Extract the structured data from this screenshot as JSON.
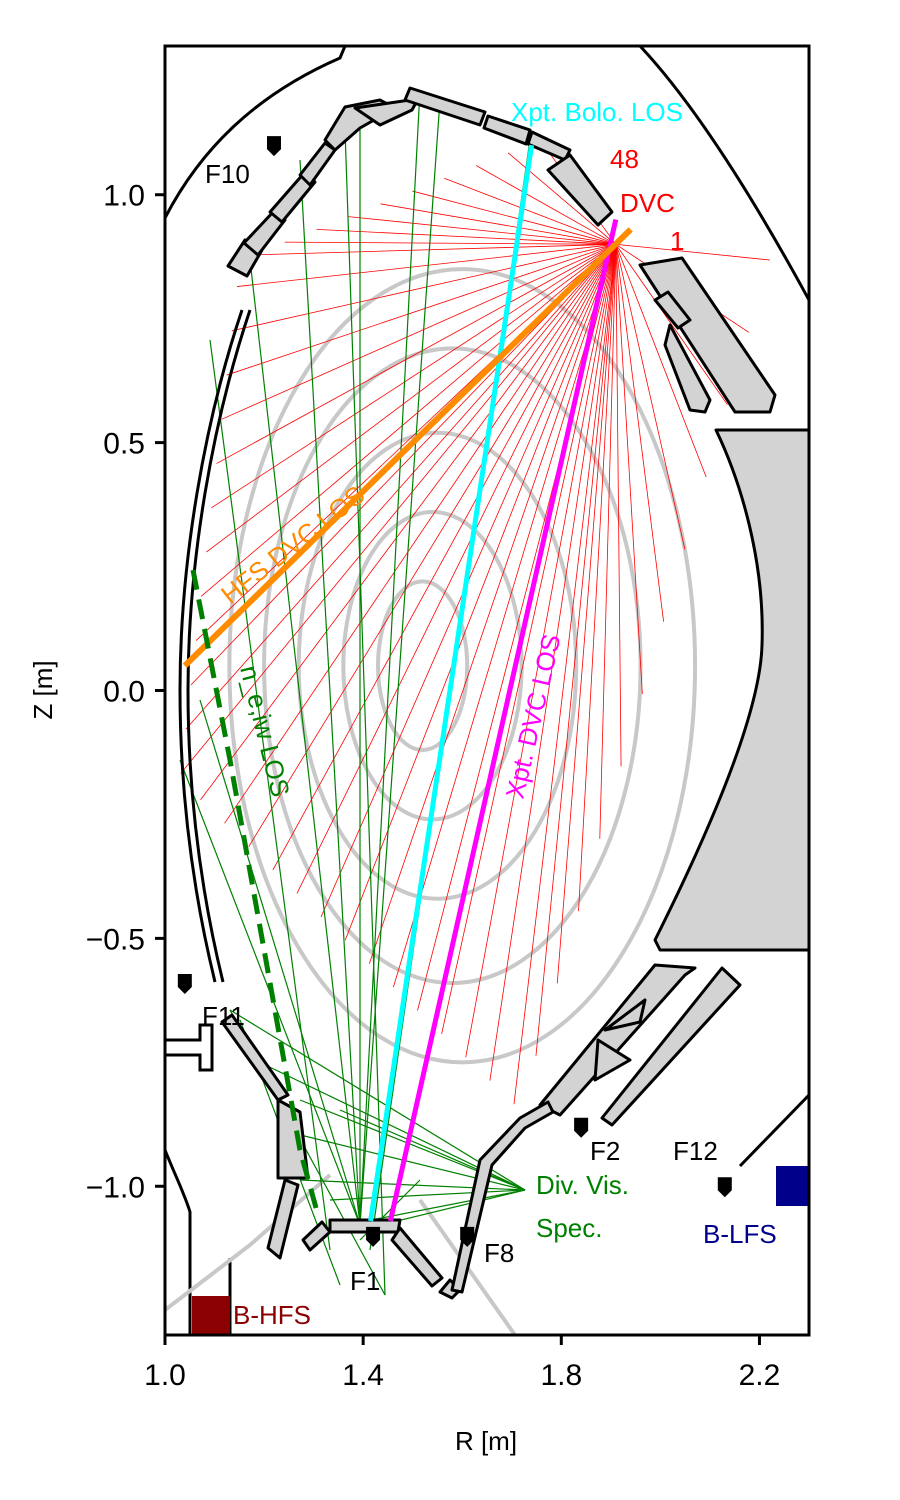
{
  "figure": {
    "xlabel": "R [m]",
    "ylabel": "Z [m]",
    "xlim": [
      1.0,
      2.3
    ],
    "ylim": [
      -1.3,
      1.3
    ],
    "xticks": [
      {
        "value": 1.0,
        "label": "1.0"
      },
      {
        "value": 1.4,
        "label": "1.4"
      },
      {
        "value": 1.8,
        "label": "1.8"
      },
      {
        "value": 2.2,
        "label": "2.2"
      }
    ],
    "yticks": [
      {
        "value": 1.0,
        "label": "1.0"
      },
      {
        "value": 0.5,
        "label": "0.5"
      },
      {
        "value": 0.0,
        "label": "0.0"
      },
      {
        "value": -0.5,
        "label": "−0.5"
      },
      {
        "value": -1.0,
        "label": "−1.0"
      }
    ]
  },
  "colors": {
    "dvc_fan": "#ff0000",
    "green_los": "#008000",
    "xpt_bolo": "#00ffff",
    "xpt_dvc": "#ff00ff",
    "hfs_dvc": "#ff8c00",
    "flux": "#c8c8c8",
    "tiles": "#d3d3d3",
    "b_hfs": "#8b0000",
    "b_lfs": "#00008b"
  },
  "los": {
    "xpt_bolo": {
      "label": "Xpt. Bolo. LOS",
      "from": [
        1.74,
        1.1
      ],
      "to": [
        1.415,
        -1.07
      ]
    },
    "xpt_dvc": {
      "label": "Xpt. DVC LOS",
      "from": [
        1.91,
        0.95
      ],
      "to": [
        1.455,
        -1.07
      ]
    },
    "hfs_dvc": {
      "label": "HFS DVC LOS",
      "from": [
        1.94,
        0.93
      ],
      "to": [
        1.04,
        0.05
      ]
    },
    "ne_iw": {
      "label": "n_e,iw LOS"
    },
    "dvc": {
      "label": "DVC",
      "first_channel": "1",
      "last_channel": "48",
      "origin": [
        1.91,
        0.9
      ],
      "count": 48
    },
    "div_vis": {
      "label_line1": "Div. Vis.",
      "label_line2": "Spec."
    }
  },
  "markers": [
    {
      "label": "F1",
      "r": 1.42,
      "z": -1.1
    },
    {
      "label": "F2",
      "r": 1.84,
      "z": -0.88
    },
    {
      "label": "F8",
      "r": 1.61,
      "z": -1.1
    },
    {
      "label": "F10",
      "r": 1.22,
      "z": 1.1
    },
    {
      "label": "F11",
      "r": 1.04,
      "z": -0.59
    },
    {
      "label": "F12",
      "r": 2.13,
      "z": -1.0
    }
  ],
  "probes": {
    "b_hfs": {
      "label": "B-HFS"
    },
    "b_lfs": {
      "label": "B-LFS"
    }
  }
}
